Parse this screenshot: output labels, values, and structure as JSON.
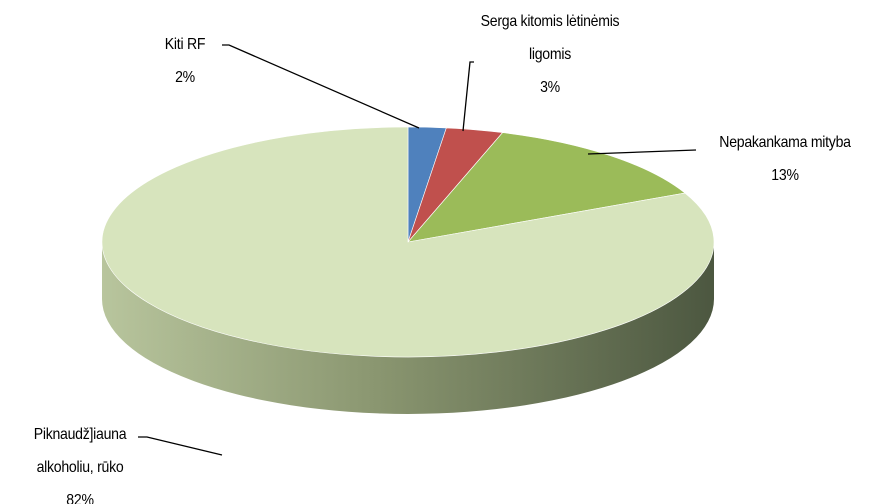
{
  "chart_data": {
    "type": "pie",
    "categories": [
      "Kiti RF",
      "Serga kitomis lėtinėmis ligomis",
      "Nepakankama mityba",
      "Piknaudž]iauna alkoholiu, rūko"
    ],
    "values": [
      2,
      3,
      13,
      82
    ],
    "value_labels": [
      "2%",
      "3%",
      "13%",
      "82%"
    ],
    "colors": [
      "#4f81bd",
      "#c0504d",
      "#9bbb59",
      "#d7e4bd"
    ]
  }
}
